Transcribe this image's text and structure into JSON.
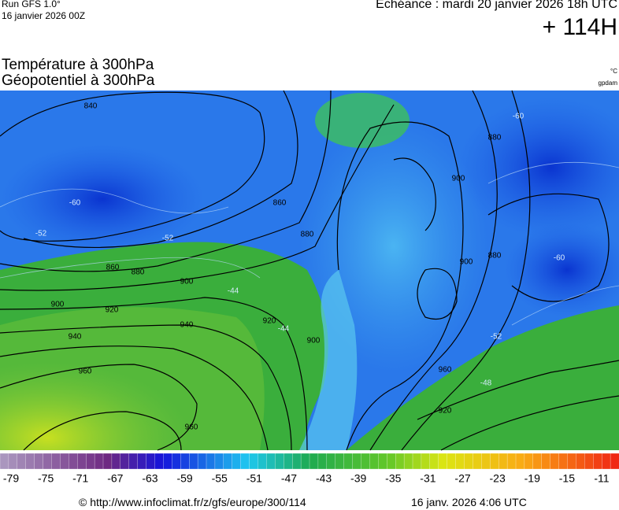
{
  "header": {
    "run": "Run GFS 1.0°",
    "date": "16 janvier 2026 00Z",
    "valid": "Echéance : mardi 20 janvier 2026 18h UTC",
    "lead": "+ 114H",
    "title1": "Température à 300hPa",
    "title2": "Géopotentiel à 300hPa",
    "unit": "°C",
    "brand": "gpdam"
  },
  "map": {
    "contour_labels": [
      "840",
      "860",
      "880",
      "900",
      "900",
      "920",
      "940",
      "940",
      "960",
      "960",
      "920",
      "900",
      "860",
      "880",
      "900",
      "900",
      "880",
      "880",
      "960",
      "920",
      "-60",
      "-52",
      "-52",
      "-44",
      "-44",
      "-60",
      "-60",
      "-52",
      "-48"
    ]
  },
  "colorbar": {
    "labels": [
      -79,
      -75,
      -71,
      -67,
      -63,
      -59,
      -55,
      -51,
      -47,
      -43,
      -39,
      -35,
      -31,
      -27,
      -23,
      -19,
      -15,
      -11
    ]
  },
  "footer": {
    "url": "© http://www.infoclimat.fr/z/gfs/europe/300/114",
    "generated": "16 janv. 2026  4:06 UTC"
  }
}
